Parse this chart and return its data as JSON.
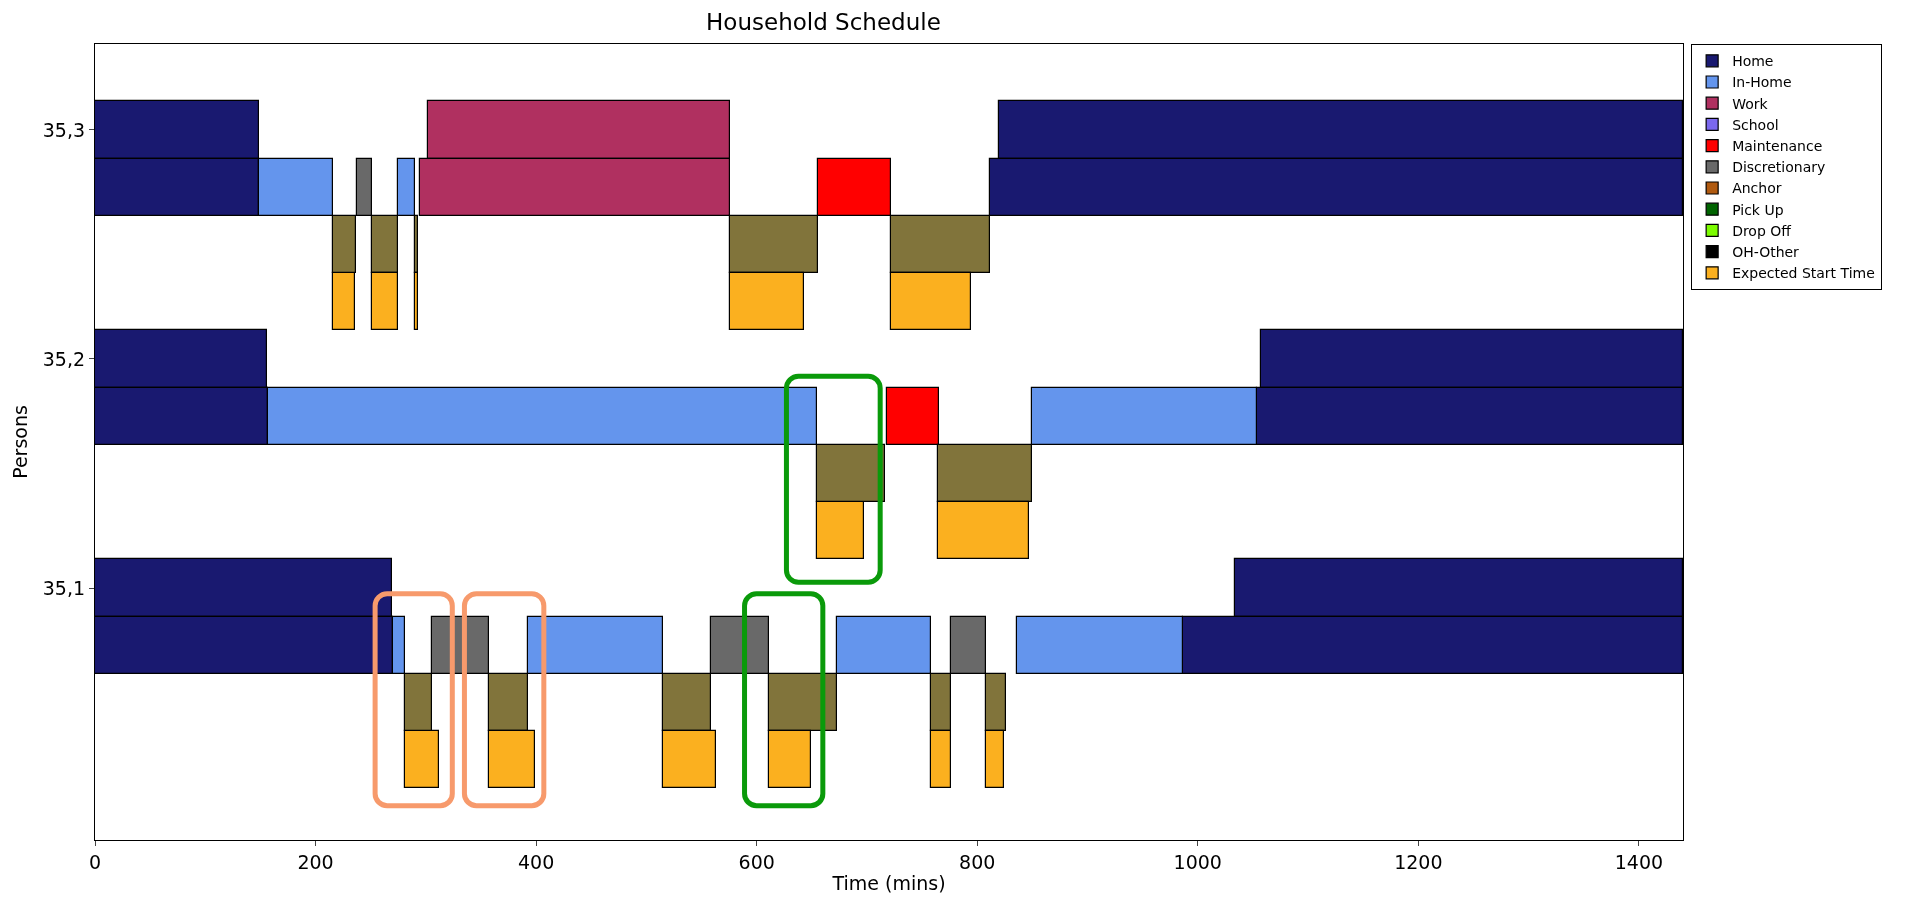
{
  "chart_data": {
    "type": "bar",
    "orientation": "horizontal",
    "title": "Household Schedule",
    "xlabel": "Time (mins)",
    "ylabel": "Persons",
    "categories": [
      "35,3",
      null,
      null,
      null,
      "35,2",
      null,
      null,
      null,
      "35,1",
      null,
      null,
      null
    ],
    "xlim": [
      0,
      1440
    ],
    "xticks": [
      0,
      200,
      400,
      600,
      800,
      1000,
      1200,
      1400
    ],
    "grid": false,
    "legend": "top right",
    "series": [
      {
        "name": "Home",
        "color": "#191970",
        "base": [
          0,
          0,
          null,
          null,
          0,
          0,
          null,
          null,
          0,
          0,
          null,
          null
        ],
        "values": [
          149,
          149,
          null,
          null,
          156,
          157,
          null,
          null,
          269,
          270,
          null,
          null
        ]
      },
      {
        "name": "In-Home",
        "color": "#6495ed",
        "base": [
          null,
          149,
          null,
          null,
          null,
          157,
          null,
          null,
          null,
          270,
          null,
          null
        ],
        "values": [
          null,
          67,
          null,
          null,
          null,
          498,
          null,
          null,
          null,
          11,
          null,
          null
        ]
      },
      {
        "name": "Work",
        "color": "#b03060",
        "base": [
          302,
          295,
          null,
          null,
          null,
          null,
          null,
          null,
          null,
          null,
          null,
          null
        ],
        "values": [
          274,
          281,
          null,
          null,
          null,
          null,
          null,
          null,
          null,
          null,
          null,
          null
        ]
      },
      {
        "name": "School",
        "color": "#7b68ee",
        "base": [
          null,
          null,
          null,
          null,
          null,
          null,
          null,
          null,
          null,
          null,
          null,
          null
        ],
        "values": [
          null,
          null,
          null,
          null,
          null,
          null,
          null,
          null,
          null,
          null,
          null,
          null
        ]
      },
      {
        "name": "Maintenance",
        "color": "#ff0000",
        "base": [
          null,
          656,
          null,
          null,
          null,
          718,
          null,
          null,
          null,
          null,
          null,
          null
        ],
        "values": [
          null,
          66,
          null,
          null,
          null,
          47,
          null,
          null,
          null,
          null,
          null,
          null
        ]
      },
      {
        "name": "Discretionary",
        "color": "#696969",
        "base": [
          null,
          238,
          null,
          null,
          null,
          null,
          null,
          null,
          null,
          306,
          null,
          null
        ],
        "values": [
          null,
          13,
          null,
          null,
          null,
          null,
          null,
          null,
          null,
          51,
          null,
          null
        ]
      },
      {
        "name": "Anchor",
        "color": "#b05a10",
        "base": [
          null,
          null,
          null,
          null,
          null,
          null,
          null,
          null,
          null,
          null,
          null,
          null
        ],
        "values": [
          null,
          null,
          null,
          null,
          null,
          null,
          null,
          null,
          null,
          null,
          null,
          null
        ]
      },
      {
        "name": "Pick Up",
        "color": "#006400",
        "base": [
          null,
          null,
          null,
          null,
          null,
          null,
          null,
          null,
          null,
          null,
          null,
          null
        ],
        "values": [
          null,
          null,
          null,
          null,
          null,
          null,
          null,
          null,
          null,
          null,
          null,
          null
        ]
      },
      {
        "name": "Drop Off",
        "color": "#7cfc00",
        "base": [
          null,
          null,
          null,
          null,
          null,
          null,
          null,
          null,
          null,
          null,
          null,
          null
        ],
        "values": [
          null,
          null,
          null,
          null,
          null,
          null,
          null,
          null,
          null,
          null,
          null,
          null
        ]
      },
      {
        "name": "OH-Other",
        "color": "#000000",
        "base": [
          null,
          null,
          null,
          null,
          null,
          null,
          null,
          null,
          null,
          null,
          null,
          null
        ],
        "values": [
          null,
          null,
          null,
          null,
          null,
          null,
          null,
          null,
          null,
          null,
          null,
          null
        ]
      },
      {
        "name": "Expected Start Time",
        "color": "#fbb01f",
        "base": [
          null,
          null,
          null,
          216,
          null,
          null,
          null,
          655,
          null,
          null,
          null,
          281
        ],
        "values": [
          null,
          null,
          null,
          20,
          null,
          null,
          null,
          42,
          null,
          null,
          null,
          31
        ]
      },
      {
        "color": "#191970",
        "base": [
          820,
          812,
          null,
          null,
          1057,
          1054,
          null,
          null,
          1034,
          987,
          null,
          null
        ],
        "values": [
          620,
          628,
          null,
          null,
          383,
          386,
          null,
          null,
          406,
          453,
          null,
          null
        ]
      },
      {
        "color": "#6495ed",
        "base": [
          null,
          275,
          null,
          null,
          null,
          850,
          null,
          null,
          null,
          393,
          null,
          null
        ],
        "values": [
          null,
          15,
          null,
          null,
          null,
          204,
          null,
          null,
          null,
          122,
          null,
          null
        ]
      },
      {
        "color": "#6495ed",
        "base": [
          null,
          null,
          null,
          null,
          null,
          null,
          null,
          null,
          null,
          673,
          null,
          null
        ],
        "values": [
          null,
          null,
          null,
          null,
          null,
          null,
          null,
          null,
          null,
          85,
          null,
          null
        ]
      },
      {
        "color": "#6495ed",
        "base": [
          null,
          null,
          null,
          null,
          null,
          null,
          null,
          null,
          null,
          836,
          null,
          null
        ],
        "values": [
          null,
          null,
          null,
          null,
          null,
          null,
          null,
          null,
          null,
          151,
          null,
          null
        ]
      },
      {
        "color": "#696969",
        "base": [
          null,
          null,
          null,
          null,
          null,
          null,
          null,
          null,
          null,
          559,
          null,
          null
        ],
        "values": [
          null,
          null,
          null,
          null,
          null,
          null,
          null,
          null,
          null,
          52,
          null,
          null
        ]
      },
      {
        "color": "#696969",
        "base": [
          null,
          null,
          null,
          null,
          null,
          null,
          null,
          null,
          null,
          776,
          null,
          null
        ],
        "values": [
          null,
          null,
          null,
          null,
          null,
          null,
          null,
          null,
          null,
          32,
          null,
          null
        ]
      },
      {
        "color": "#81743b",
        "base": [
          null,
          null,
          216,
          null,
          null,
          null,
          655,
          null,
          null,
          null,
          281,
          null
        ],
        "values": [
          null,
          null,
          21,
          null,
          null,
          null,
          61,
          null,
          null,
          null,
          25,
          null
        ]
      },
      {
        "color": "#81743b",
        "base": [
          null,
          null,
          251,
          null,
          null,
          null,
          764,
          null,
          null,
          null,
          357,
          null
        ],
        "values": [
          null,
          null,
          24,
          null,
          null,
          null,
          86,
          null,
          null,
          null,
          36,
          null
        ]
      },
      {
        "color": "#81743b",
        "base": [
          null,
          null,
          290,
          null,
          null,
          null,
          null,
          null,
          null,
          null,
          515,
          null
        ],
        "values": [
          null,
          null,
          3,
          null,
          null,
          null,
          null,
          null,
          null,
          null,
          44,
          null
        ]
      },
      {
        "color": "#81743b",
        "base": [
          null,
          null,
          576,
          null,
          null,
          null,
          null,
          null,
          null,
          null,
          611,
          null
        ],
        "values": [
          null,
          null,
          80,
          null,
          null,
          null,
          null,
          null,
          null,
          null,
          62,
          null
        ]
      },
      {
        "color": "#81743b",
        "base": [
          null,
          null,
          722,
          null,
          null,
          null,
          null,
          null,
          null,
          null,
          758,
          null
        ],
        "values": [
          null,
          null,
          90,
          null,
          null,
          null,
          null,
          null,
          null,
          null,
          18,
          null
        ]
      },
      {
        "color": "#81743b",
        "base": [
          null,
          null,
          null,
          null,
          null,
          null,
          null,
          null,
          null,
          null,
          808,
          null
        ],
        "values": [
          null,
          null,
          null,
          null,
          null,
          null,
          null,
          null,
          null,
          null,
          18,
          null
        ]
      },
      {
        "color": "#fbb01f",
        "base": [
          null,
          null,
          null,
          251,
          null,
          null,
          null,
          764,
          null,
          null,
          null,
          357
        ],
        "values": [
          null,
          null,
          null,
          24,
          null,
          null,
          null,
          83,
          null,
          null,
          null,
          42
        ]
      },
      {
        "color": "#fbb01f",
        "base": [
          null,
          null,
          null,
          290,
          null,
          null,
          null,
          null,
          null,
          null,
          null,
          515
        ],
        "values": [
          null,
          null,
          null,
          3,
          null,
          null,
          null,
          null,
          null,
          null,
          null,
          48
        ]
      },
      {
        "color": "#fbb01f",
        "base": [
          null,
          null,
          null,
          576,
          null,
          null,
          null,
          null,
          null,
          null,
          null,
          611
        ],
        "values": [
          null,
          null,
          null,
          67,
          null,
          null,
          null,
          null,
          null,
          null,
          null,
          38
        ]
      },
      {
        "color": "#fbb01f",
        "base": [
          null,
          null,
          null,
          722,
          null,
          null,
          null,
          null,
          null,
          null,
          null,
          758
        ],
        "values": [
          null,
          null,
          null,
          72,
          null,
          null,
          null,
          null,
          null,
          null,
          null,
          18
        ]
      },
      {
        "color": "#fbb01f",
        "base": [
          null,
          null,
          null,
          null,
          null,
          null,
          null,
          null,
          null,
          null,
          null,
          808
        ],
        "values": [
          null,
          null,
          null,
          null,
          null,
          null,
          null,
          null,
          null,
          null,
          null,
          16
        ]
      }
    ]
  }
}
